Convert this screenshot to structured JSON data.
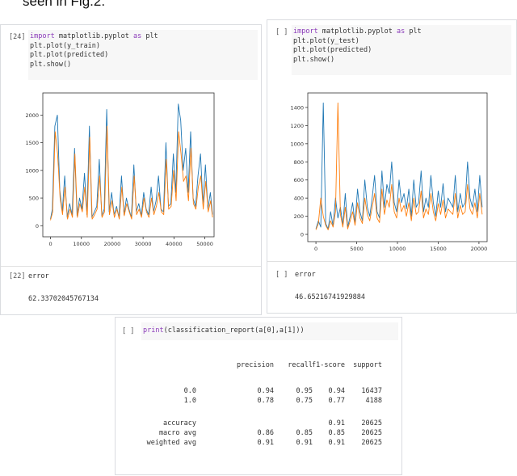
{
  "caption": "seen in Fig.2.",
  "left_cell": {
    "prompt": "[24]",
    "code": [
      "plt.plot(y_train)",
      "plt.plot(predicted)",
      "plt.show()"
    ],
    "import_kw": "import",
    "import_rest": " matplotlib.pyplot ",
    "as_kw": "as",
    "alias": " plt",
    "error_prompt": "[22]",
    "error_code": "error",
    "error_value": "62.33702045767134"
  },
  "right_cell": {
    "prompt": "[ ]",
    "code": [
      "plt.plot(y_test)",
      "plt.plot(predicted)",
      "plt.show()"
    ],
    "import_kw": "import",
    "import_rest": " matplotlib.pyplot ",
    "as_kw": "as",
    "alias": " plt",
    "error_prompt": "[ ]",
    "error_code": "error",
    "error_value": "46.65216741929884"
  },
  "report_cell": {
    "prompt": "[ ]",
    "code_fn": "print",
    "code_rest": "(classification_report(a[0],a[1]))",
    "headers": [
      "precision",
      "recall",
      "f1-score",
      "support"
    ],
    "rows": [
      {
        "label": "0.0",
        "values": [
          "0.94",
          "0.95",
          "0.94",
          "16437"
        ]
      },
      {
        "label": "1.0",
        "values": [
          "0.78",
          "0.75",
          "0.77",
          "4188"
        ]
      },
      {
        "label": "accuracy",
        "values": [
          "",
          "",
          "0.91",
          "20625"
        ]
      },
      {
        "label": "macro avg",
        "values": [
          "0.86",
          "0.85",
          "0.85",
          "20625"
        ]
      },
      {
        "label": "weighted avg",
        "values": [
          "0.91",
          "0.91",
          "0.91",
          "20625"
        ]
      }
    ]
  },
  "chart_data": [
    {
      "type": "line",
      "x_ticks": [
        0,
        10000,
        20000,
        30000,
        40000,
        50000
      ],
      "y_ticks": [
        0,
        500,
        1000,
        1500,
        2000
      ],
      "xlim": [
        -2500,
        53000
      ],
      "ylim": [
        -200,
        2400
      ],
      "series": [
        {
          "color": "#1f77b4",
          "x": [
            0,
            600,
            1400,
            2200,
            3000,
            3800,
            4600,
            5400,
            6200,
            7000,
            7800,
            8600,
            9400,
            10200,
            11000,
            11800,
            12600,
            13400,
            14200,
            15000,
            15800,
            16600,
            17400,
            18200,
            19000,
            19800,
            20600,
            21400,
            22200,
            23000,
            23800,
            24600,
            25400,
            26200,
            27000,
            27800,
            28600,
            29400,
            30200,
            31000,
            31800,
            32600,
            33400,
            34200,
            35000,
            35800,
            36600,
            37400,
            38200,
            39000,
            39800,
            40600,
            41400,
            42200,
            43000,
            43800,
            44600,
            45400,
            46200,
            47000,
            47800,
            48600,
            49400,
            50200,
            51000,
            51800,
            52500
          ],
          "y": [
            120,
            300,
            1800,
            2000,
            650,
            250,
            900,
            150,
            400,
            200,
            1400,
            180,
            500,
            300,
            950,
            200,
            1800,
            150,
            250,
            350,
            1200,
            180,
            300,
            2100,
            250,
            600,
            200,
            350,
            150,
            900,
            200,
            500,
            300,
            150,
            1100,
            250,
            400,
            180,
            600,
            300,
            200,
            700,
            250,
            450,
            900,
            300,
            250,
            1500,
            350,
            400,
            1300,
            600,
            2200,
            1900,
            1000,
            1400,
            600,
            1700,
            500,
            350,
            900,
            1300,
            400,
            1100,
            300,
            600,
            200
          ]
        },
        {
          "color": "#ff7f0e",
          "x": [
            0,
            700,
            1500,
            2300,
            3100,
            3900,
            4700,
            5500,
            6300,
            7100,
            7900,
            8700,
            9500,
            10300,
            11100,
            11900,
            12700,
            13500,
            14300,
            15100,
            15900,
            16700,
            17500,
            18300,
            19100,
            19900,
            20700,
            21500,
            22300,
            23100,
            23900,
            24700,
            25500,
            26300,
            27100,
            27900,
            28700,
            29500,
            30300,
            31100,
            31900,
            32700,
            33500,
            34300,
            35100,
            35900,
            36700,
            37500,
            38300,
            39100,
            39900,
            40700,
            41500,
            42300,
            43100,
            43900,
            44700,
            45500,
            46300,
            47100,
            47900,
            48700,
            49500,
            50300,
            51100,
            51900,
            52500
          ],
          "y": [
            100,
            250,
            1700,
            1300,
            500,
            200,
            700,
            120,
            300,
            150,
            1300,
            150,
            400,
            250,
            700,
            150,
            1600,
            120,
            200,
            300,
            900,
            150,
            250,
            1800,
            200,
            450,
            150,
            300,
            120,
            700,
            180,
            400,
            250,
            120,
            900,
            200,
            300,
            150,
            500,
            250,
            150,
            500,
            200,
            350,
            600,
            250,
            200,
            1200,
            300,
            350,
            1000,
            450,
            1700,
            1300,
            800,
            900,
            450,
            1400,
            400,
            300,
            700,
            900,
            300,
            800,
            250,
            450,
            150
          ]
        }
      ]
    },
    {
      "type": "line",
      "x_ticks": [
        0,
        5000,
        10000,
        15000,
        20000
      ],
      "y_ticks": [
        0,
        200,
        400,
        600,
        800,
        1000,
        1200,
        1400
      ],
      "xlim": [
        -1000,
        21000
      ],
      "ylim": [
        -80,
        1560
      ],
      "series": [
        {
          "color": "#1f77b4",
          "x": [
            0,
            300,
            600,
            900,
            1200,
            1500,
            1800,
            2100,
            2400,
            2700,
            3000,
            3300,
            3600,
            3900,
            4200,
            4500,
            4800,
            5100,
            5400,
            5700,
            6000,
            6300,
            6600,
            6900,
            7200,
            7500,
            7800,
            8100,
            8400,
            8700,
            9000,
            9300,
            9600,
            9900,
            10200,
            10500,
            10800,
            11100,
            11400,
            11700,
            12000,
            12300,
            12600,
            12900,
            13200,
            13500,
            13800,
            14100,
            14400,
            14700,
            15000,
            15300,
            15600,
            15900,
            16200,
            16500,
            16800,
            17100,
            17400,
            17700,
            18000,
            18300,
            18600,
            18900,
            19200,
            19500,
            19800,
            20100,
            20400
          ],
          "y": [
            60,
            150,
            80,
            1450,
            120,
            60,
            250,
            90,
            400,
            180,
            300,
            100,
            450,
            80,
            200,
            350,
            120,
            500,
            250,
            150,
            600,
            300,
            200,
            400,
            650,
            250,
            180,
            700,
            300,
            550,
            450,
            800,
            350,
            250,
            600,
            350,
            450,
            280,
            500,
            200,
            600,
            300,
            350,
            700,
            250,
            400,
            300,
            650,
            350,
            200,
            480,
            300,
            560,
            250,
            400,
            350,
            300,
            650,
            250,
            450,
            300,
            350,
            800,
            400,
            300,
            500,
            250,
            650,
            300
          ]
        },
        {
          "color": "#ff7f0e",
          "x": [
            0,
            300,
            600,
            900,
            1200,
            1500,
            1800,
            2100,
            2400,
            2700,
            3000,
            3300,
            3600,
            3900,
            4200,
            4500,
            4800,
            5100,
            5400,
            5700,
            6000,
            6300,
            6600,
            6900,
            7200,
            7500,
            7800,
            8100,
            8400,
            8700,
            9000,
            9300,
            9600,
            9900,
            10200,
            10500,
            10800,
            11100,
            11400,
            11700,
            12000,
            12300,
            12600,
            12900,
            13200,
            13500,
            13800,
            14100,
            14400,
            14700,
            15000,
            15300,
            15600,
            15900,
            16200,
            16500,
            16800,
            17100,
            17400,
            17700,
            18000,
            18300,
            18600,
            18900,
            19200,
            19500,
            19800,
            20100,
            20400
          ],
          "y": [
            50,
            120,
            400,
            200,
            100,
            50,
            150,
            80,
            250,
            1450,
            220,
            80,
            300,
            60,
            150,
            250,
            100,
            350,
            180,
            120,
            400,
            220,
            150,
            300,
            450,
            180,
            130,
            500,
            220,
            380,
            300,
            550,
            250,
            180,
            400,
            250,
            320,
            200,
            350,
            150,
            400,
            220,
            250,
            480,
            180,
            280,
            220,
            450,
            250,
            150,
            340,
            220,
            380,
            180,
            280,
            250,
            220,
            450,
            180,
            320,
            220,
            250,
            550,
            280,
            220,
            350,
            180,
            450,
            220
          ]
        }
      ]
    }
  ]
}
